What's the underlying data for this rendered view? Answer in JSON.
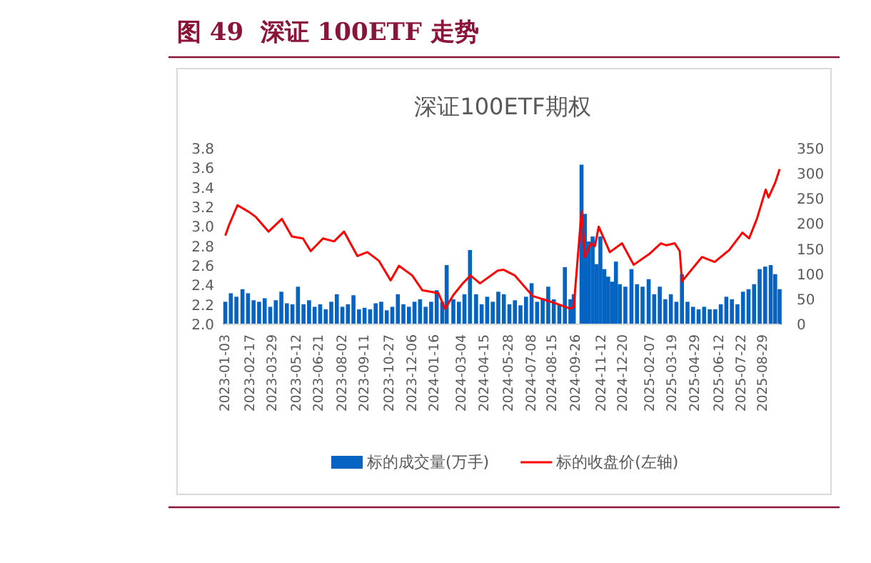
{
  "chart_data": {
    "type": "bar",
    "title": "图 49  深证 100ETF 走势",
    "subtitle": "深证100ETF期权",
    "xlim": [
      "2023-01-03",
      "2025-09-30"
    ],
    "xticks": [
      "2023-01-03",
      "2023-02-17",
      "2023-03-29",
      "2023-05-12",
      "2023-06-21",
      "2023-08-02",
      "2023-09-11",
      "2023-10-27",
      "2023-12-06",
      "2024-01-16",
      "2024-03-04",
      "2024-04-15",
      "2024-05-28",
      "2024-07-08",
      "2024-08-15",
      "2024-09-26",
      "2024-11-12",
      "2024-12-20",
      "2025-02-07",
      "2025-03-19",
      "2025-04-29",
      "2025-06-12",
      "2025-07-22",
      "2025-08-29"
    ],
    "ylim": [
      2.0,
      3.8
    ],
    "yticks": [
      {
        "value": 2.0,
        "label": "2.0"
      },
      {
        "value": 2.2,
        "label": "2.2"
      },
      {
        "value": 2.4,
        "label": "2.4"
      },
      {
        "value": 2.6,
        "label": "2.6"
      },
      {
        "value": 2.8,
        "label": "2.8"
      },
      {
        "value": 3.0,
        "label": "3.0"
      },
      {
        "value": 3.2,
        "label": "3.2"
      },
      {
        "value": 3.4,
        "label": "3.4"
      },
      {
        "value": 3.6,
        "label": "3.6"
      },
      {
        "value": 3.8,
        "label": "3.8"
      }
    ],
    "y2lim": [
      0,
      350
    ],
    "y2ticks": [
      0,
      50,
      100,
      150,
      200,
      250,
      300,
      350
    ],
    "legend": "bottom",
    "series": [
      {
        "name": "标的成交量(万手)",
        "axis": "y2",
        "color": "#0563c1",
        "x": [
          "2023-01-05",
          "2023-01-15",
          "2023-01-25",
          "2023-02-05",
          "2023-02-15",
          "2023-02-25",
          "2023-03-07",
          "2023-03-17",
          "2023-03-27",
          "2023-04-06",
          "2023-04-16",
          "2023-04-26",
          "2023-05-06",
          "2023-05-16",
          "2023-05-26",
          "2023-06-05",
          "2023-06-15",
          "2023-06-25",
          "2023-07-05",
          "2023-07-15",
          "2023-07-25",
          "2023-08-04",
          "2023-08-14",
          "2023-08-24",
          "2023-09-03",
          "2023-09-13",
          "2023-09-23",
          "2023-10-03",
          "2023-10-13",
          "2023-10-23",
          "2023-11-02",
          "2023-11-12",
          "2023-11-22",
          "2023-12-02",
          "2023-12-12",
          "2023-12-22",
          "2024-01-01",
          "2024-01-11",
          "2024-01-21",
          "2024-01-31",
          "2024-02-08",
          "2024-02-20",
          "2024-03-01",
          "2024-03-11",
          "2024-03-21",
          "2024-04-01",
          "2024-04-11",
          "2024-04-21",
          "2024-05-01",
          "2024-05-11",
          "2024-05-21",
          "2024-05-31",
          "2024-06-10",
          "2024-06-20",
          "2024-06-30",
          "2024-07-10",
          "2024-07-20",
          "2024-07-30",
          "2024-08-09",
          "2024-08-19",
          "2024-08-29",
          "2024-09-08",
          "2024-09-18",
          "2024-09-24",
          "2024-10-08",
          "2024-10-14",
          "2024-10-21",
          "2024-10-28",
          "2024-11-04",
          "2024-11-11",
          "2024-11-18",
          "2024-11-25",
          "2024-12-02",
          "2024-12-09",
          "2024-12-16",
          "2024-12-26",
          "2025-01-06",
          "2025-01-16",
          "2025-01-26",
          "2025-02-06",
          "2025-02-16",
          "2025-02-26",
          "2025-03-08",
          "2025-03-18",
          "2025-03-28",
          "2025-04-07",
          "2025-04-17",
          "2025-04-27",
          "2025-05-07",
          "2025-05-17",
          "2025-05-27",
          "2025-06-06",
          "2025-06-16",
          "2025-06-26",
          "2025-07-06",
          "2025-07-16",
          "2025-07-26",
          "2025-08-05",
          "2025-08-15",
          "2025-08-25",
          "2025-09-04",
          "2025-09-14",
          "2025-09-22",
          "2025-09-30"
        ],
        "values": [
          45,
          62,
          55,
          70,
          62,
          48,
          45,
          52,
          35,
          48,
          65,
          42,
          40,
          75,
          40,
          48,
          35,
          40,
          30,
          45,
          60,
          35,
          40,
          58,
          30,
          33,
          30,
          42,
          45,
          28,
          35,
          60,
          40,
          35,
          45,
          50,
          35,
          45,
          68,
          45,
          118,
          50,
          45,
          60,
          148,
          60,
          40,
          55,
          45,
          65,
          60,
          40,
          48,
          38,
          55,
          82,
          45,
          52,
          75,
          50,
          40,
          114,
          50,
          60,
          318,
          220,
          165,
          175,
          120,
          175,
          110,
          95,
          85,
          125,
          80,
          75,
          110,
          80,
          75,
          90,
          60,
          75,
          50,
          60,
          45,
          100,
          45,
          35,
          30,
          35,
          30,
          30,
          40,
          55,
          50,
          40,
          65,
          70,
          80,
          110,
          115,
          118,
          100,
          70
        ]
      },
      {
        "name": "标的收盘价(左轴)",
        "type": "line",
        "color": "#ff0000",
        "x": [
          "2023-01-05",
          "2023-01-12",
          "2023-01-27",
          "2023-02-17",
          "2023-03-01",
          "2023-03-24",
          "2023-04-17",
          "2023-05-05",
          "2023-05-25",
          "2023-06-08",
          "2023-06-30",
          "2023-07-20",
          "2023-08-07",
          "2023-08-31",
          "2023-09-18",
          "2023-10-09",
          "2023-10-30",
          "2023-11-14",
          "2023-12-08",
          "2023-12-26",
          "2024-01-24",
          "2024-02-05",
          "2024-02-20",
          "2024-03-08",
          "2024-03-22",
          "2024-04-08",
          "2024-05-10",
          "2024-05-20",
          "2024-06-10",
          "2024-07-12",
          "2024-08-20",
          "2024-09-18",
          "2024-09-24",
          "2024-10-08",
          "2024-10-14",
          "2024-10-25",
          "2024-11-01",
          "2024-11-08",
          "2024-11-28",
          "2024-12-20",
          "2025-01-10",
          "2025-02-07",
          "2025-02-28",
          "2025-03-10",
          "2025-03-25",
          "2025-04-03",
          "2025-04-07",
          "2025-05-13",
          "2025-06-05",
          "2025-07-01",
          "2025-07-25",
          "2025-08-06",
          "2025-08-20",
          "2025-09-05",
          "2025-09-10",
          "2025-09-22",
          "2025-09-30"
        ],
        "values": [
          2.91,
          3.02,
          3.22,
          3.15,
          3.1,
          2.95,
          3.08,
          2.9,
          2.88,
          2.75,
          2.88,
          2.85,
          2.95,
          2.7,
          2.74,
          2.65,
          2.45,
          2.6,
          2.5,
          2.35,
          2.32,
          2.16,
          2.3,
          2.42,
          2.5,
          2.42,
          2.55,
          2.56,
          2.5,
          2.29,
          2.22,
          2.16,
          2.18,
          3.16,
          2.69,
          2.83,
          2.8,
          3.0,
          2.74,
          2.83,
          2.61,
          2.72,
          2.83,
          2.81,
          2.83,
          2.75,
          2.44,
          2.69,
          2.64,
          2.76,
          2.94,
          2.88,
          3.08,
          3.38,
          3.3,
          3.45,
          3.59
        ]
      }
    ]
  }
}
